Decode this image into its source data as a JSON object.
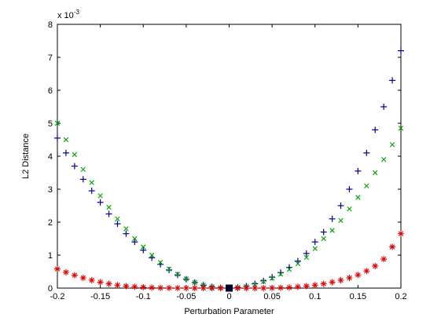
{
  "chart_data": {
    "type": "scatter",
    "title": "",
    "xlabel": "Perturbation Parameter",
    "ylabel": "L2 Distance",
    "y_exponent_label": "x 10",
    "y_exponent_sup": "-3",
    "xlim": [
      -0.2,
      0.2
    ],
    "ylim": [
      0,
      8
    ],
    "x_ticks": [
      -0.2,
      -0.15,
      -0.1,
      -0.05,
      0,
      0.05,
      0.1,
      0.15,
      0.2
    ],
    "x_tick_labels": [
      "-0.2",
      "-0.15",
      "-0.1",
      "-0.05",
      "0",
      "0.05",
      "0.1",
      "0.15",
      "0.2"
    ],
    "y_ticks": [
      0,
      1,
      2,
      3,
      4,
      5,
      6,
      7,
      8
    ],
    "y_tick_labels": [
      "0",
      "1",
      "2",
      "3",
      "4",
      "5",
      "6",
      "7",
      "8"
    ],
    "grid": false,
    "legend": "none",
    "series": [
      {
        "marker": "plus",
        "color": "#00008f",
        "x": [
          -0.2,
          -0.19,
          -0.18,
          -0.17,
          -0.16,
          -0.15,
          -0.14,
          -0.13,
          -0.12,
          -0.11,
          -0.1,
          -0.09,
          -0.08,
          -0.07,
          -0.06,
          -0.05,
          -0.04,
          -0.03,
          -0.02,
          -0.01,
          0,
          0.01,
          0.02,
          0.03,
          0.04,
          0.05,
          0.06,
          0.07,
          0.08,
          0.09,
          0.1,
          0.11,
          0.12,
          0.13,
          0.14,
          0.15,
          0.16,
          0.17,
          0.18,
          0.19,
          0.2
        ],
        "y": [
          4.55,
          4.1,
          3.7,
          3.3,
          2.95,
          2.6,
          2.25,
          1.95,
          1.65,
          1.4,
          1.15,
          0.92,
          0.72,
          0.55,
          0.4,
          0.27,
          0.17,
          0.09,
          0.04,
          0.01,
          0,
          0.02,
          0.06,
          0.13,
          0.22,
          0.33,
          0.47,
          0.63,
          0.82,
          1.05,
          1.4,
          1.7,
          2.1,
          2.5,
          3.0,
          3.55,
          4.1,
          4.8,
          5.5,
          6.3,
          7.2
        ]
      },
      {
        "marker": "x",
        "color": "#00a000",
        "x": [
          -0.2,
          -0.19,
          -0.18,
          -0.17,
          -0.16,
          -0.15,
          -0.14,
          -0.13,
          -0.12,
          -0.11,
          -0.1,
          -0.09,
          -0.08,
          -0.07,
          -0.06,
          -0.05,
          -0.04,
          -0.03,
          -0.02,
          -0.01,
          0,
          0.01,
          0.02,
          0.03,
          0.04,
          0.05,
          0.06,
          0.07,
          0.08,
          0.09,
          0.1,
          0.11,
          0.12,
          0.13,
          0.14,
          0.15,
          0.16,
          0.17,
          0.18,
          0.19,
          0.2
        ],
        "y": [
          5.0,
          4.5,
          4.05,
          3.6,
          3.2,
          2.8,
          2.45,
          2.1,
          1.8,
          1.5,
          1.25,
          1.0,
          0.78,
          0.58,
          0.42,
          0.28,
          0.17,
          0.09,
          0.04,
          0.01,
          0,
          0.02,
          0.05,
          0.11,
          0.2,
          0.3,
          0.42,
          0.57,
          0.74,
          0.93,
          1.2,
          1.5,
          1.75,
          2.05,
          2.4,
          2.75,
          3.1,
          3.5,
          3.9,
          4.35,
          4.85
        ]
      },
      {
        "marker": "star",
        "color": "#e00000",
        "x": [
          -0.2,
          -0.19,
          -0.18,
          -0.17,
          -0.16,
          -0.15,
          -0.14,
          -0.13,
          -0.12,
          -0.11,
          -0.1,
          -0.09,
          -0.08,
          -0.07,
          -0.06,
          -0.05,
          -0.04,
          -0.03,
          -0.02,
          -0.01,
          0,
          0.01,
          0.02,
          0.03,
          0.04,
          0.05,
          0.06,
          0.07,
          0.08,
          0.09,
          0.1,
          0.11,
          0.12,
          0.13,
          0.14,
          0.15,
          0.16,
          0.17,
          0.18,
          0.19,
          0.2
        ],
        "y": [
          0.58,
          0.48,
          0.39,
          0.31,
          0.24,
          0.18,
          0.13,
          0.09,
          0.06,
          0.04,
          0.025,
          0.015,
          0.008,
          0.004,
          0.002,
          0.001,
          0.0,
          0.0,
          0.0,
          0.0,
          0,
          0.0,
          0.0,
          0.0,
          0.0,
          0.005,
          0.01,
          0.02,
          0.04,
          0.06,
          0.09,
          0.13,
          0.18,
          0.24,
          0.31,
          0.4,
          0.52,
          0.67,
          0.88,
          1.25,
          1.65
        ]
      }
    ],
    "highlight_point": {
      "x": 0,
      "y": 0,
      "marker": "square",
      "color": "#000033"
    }
  }
}
